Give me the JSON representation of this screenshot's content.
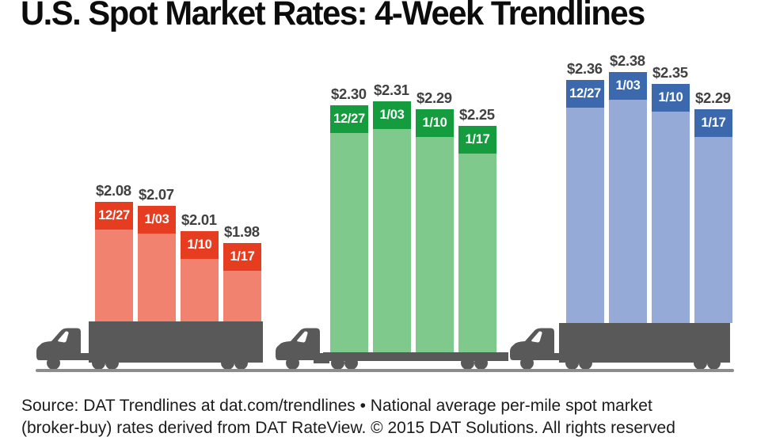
{
  "title": "U.S. Spot Market Rates: 4-Week Trendlines",
  "footer": {
    "line1": "Source: DAT Trendlines at dat.com/trendlines • National average per-mile spot market",
    "line2": "(broker-buy) rates derived from DAT RateView. © 2015 DAT Solutions. All rights reserved"
  },
  "chart_data": {
    "type": "bar",
    "title": "U.S. Spot Market Rates: 4-Week Trendlines",
    "categories": [
      "12/27",
      "1/03",
      "1/10",
      "1/17"
    ],
    "value_prefix": "$",
    "legend": "none",
    "axes": "none — values labeled above each bar, dates labeled inside bar caps",
    "series": [
      {
        "name": "group-1-red",
        "truck_icon": "box-trailer-truck-icon",
        "cap_color": "#e63c1f",
        "body_color": "#f0826f",
        "values": [
          2.08,
          2.07,
          2.01,
          1.98
        ]
      },
      {
        "name": "group-2-green",
        "truck_icon": "flatbed-truck-icon",
        "cap_color": "#149c3e",
        "body_color": "#7fc98c",
        "values": [
          2.3,
          2.31,
          2.29,
          2.25
        ]
      },
      {
        "name": "group-3-blue",
        "truck_icon": "box-trailer-truck-icon",
        "cap_color": "#3c69ae",
        "body_color": "#95aad7",
        "values": [
          2.36,
          2.38,
          2.35,
          2.29
        ]
      }
    ]
  },
  "colors": {
    "truck": "#595959",
    "ground_line": "#8c8c8c",
    "value_label": "#414042",
    "date_label": "#ffffff",
    "background": "#ffffff",
    "title_text": "#0c0c0c"
  }
}
